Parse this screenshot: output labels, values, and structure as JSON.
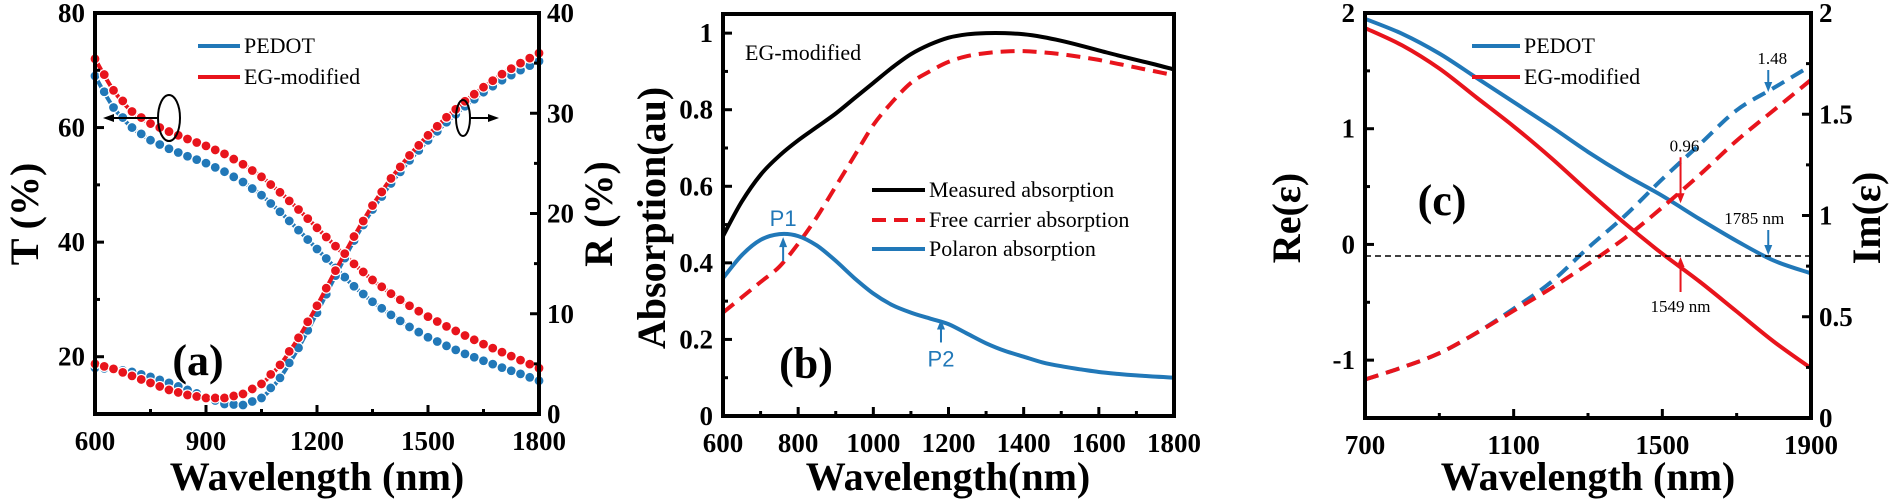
{
  "figure": {
    "colors": {
      "blue": "#2178b8",
      "red": "#e8141c",
      "black": "#000000"
    }
  },
  "chart_data": [
    {
      "id": "a",
      "type": "line",
      "panel_label": "(a)",
      "xlabel": "Wavelength (nm)",
      "ylabel": "T (%)",
      "ylabel_right": "R (%)",
      "xlim": [
        600,
        1800
      ],
      "ylim": [
        10,
        80
      ],
      "ylim_right": [
        0,
        40
      ],
      "xticks": [
        600,
        900,
        1200,
        1500,
        1800
      ],
      "yticks": [
        20,
        40,
        60,
        80
      ],
      "yticks_right": [
        0,
        10,
        20,
        30,
        40
      ],
      "legend": {
        "placement": "top-center",
        "entries": [
          "PEDOT",
          "EG-modified"
        ]
      },
      "annotations": [
        {
          "type": "ellipse-arrow",
          "x": 800,
          "direction": "left",
          "meaning": "T curves -> left axis"
        },
        {
          "type": "ellipse-arrow",
          "x": 1600,
          "direction": "right",
          "meaning": "R curves -> right axis"
        }
      ],
      "series": [
        {
          "name": "PEDOT",
          "quantity": "T",
          "axis": "left",
          "color": "blue",
          "markers": true,
          "x": [
            600,
            650,
            700,
            750,
            800,
            850,
            900,
            950,
            1000,
            1050,
            1100,
            1150,
            1200,
            1250,
            1300,
            1350,
            1400,
            1450,
            1500,
            1550,
            1600,
            1650,
            1700,
            1750,
            1800
          ],
          "y": [
            69,
            63.5,
            60,
            57.8,
            56.3,
            55,
            53.8,
            52.3,
            50.5,
            48.2,
            45.3,
            42.1,
            38.8,
            35.5,
            32.3,
            29.6,
            27.3,
            25.2,
            23.4,
            21.9,
            20.5,
            19.3,
            18.1,
            17,
            15.8
          ]
        },
        {
          "name": "EG-modified",
          "quantity": "T",
          "axis": "left",
          "color": "red",
          "markers": true,
          "x": [
            600,
            650,
            700,
            750,
            800,
            850,
            900,
            950,
            1000,
            1050,
            1100,
            1150,
            1200,
            1250,
            1300,
            1350,
            1400,
            1450,
            1500,
            1550,
            1600,
            1650,
            1700,
            1750,
            1800
          ],
          "y": [
            72,
            66.5,
            62.8,
            60.7,
            59.3,
            58,
            56.8,
            55.4,
            53.6,
            51.4,
            48.7,
            45.7,
            42.5,
            39.3,
            36.2,
            33.4,
            31,
            28.9,
            27,
            25.3,
            23.7,
            22.2,
            20.8,
            19.4,
            18
          ]
        },
        {
          "name": "PEDOT",
          "quantity": "R",
          "axis": "right",
          "color": "blue",
          "markers": true,
          "x": [
            600,
            650,
            700,
            750,
            800,
            850,
            900,
            950,
            1000,
            1050,
            1100,
            1150,
            1200,
            1250,
            1300,
            1350,
            1400,
            1450,
            1500,
            1550,
            1600,
            1650,
            1700,
            1750,
            1800
          ],
          "y": [
            4.6,
            4.5,
            4.2,
            3.7,
            3.1,
            2.4,
            1.7,
            1.0,
            0.9,
            1.6,
            3.6,
            6.6,
            10.1,
            13.8,
            17.3,
            20.4,
            23.0,
            25.3,
            27.3,
            29.1,
            30.7,
            32.1,
            33.3,
            34.3,
            35.2
          ]
        },
        {
          "name": "EG-modified",
          "quantity": "R",
          "axis": "right",
          "color": "red",
          "markers": true,
          "x": [
            600,
            650,
            700,
            750,
            800,
            850,
            900,
            950,
            1000,
            1050,
            1100,
            1150,
            1200,
            1250,
            1300,
            1350,
            1400,
            1450,
            1500,
            1550,
            1600,
            1650,
            1700,
            1750,
            1800
          ],
          "y": [
            5.0,
            4.5,
            3.8,
            3.1,
            2.4,
            1.9,
            1.6,
            1.6,
            2.0,
            3.0,
            4.9,
            7.6,
            10.8,
            14.3,
            17.7,
            20.8,
            23.5,
            25.8,
            27.8,
            29.6,
            31.2,
            32.6,
            33.9,
            35.0,
            36.0
          ]
        }
      ]
    },
    {
      "id": "b",
      "type": "line",
      "panel_label": "(b)",
      "inset_title": "EG-modified",
      "xlabel": "Wavelength(nm)",
      "ylabel": "Absorption(au)",
      "xlim": [
        600,
        1800
      ],
      "ylim": [
        0,
        1.05
      ],
      "xticks": [
        600,
        800,
        1000,
        1200,
        1400,
        1600,
        1800
      ],
      "yticks": [
        0,
        0.2,
        0.4,
        0.6,
        0.8,
        1
      ],
      "ytick_labels": [
        "0",
        "0.2",
        "0.4",
        "0.6",
        "0.8",
        "1"
      ],
      "legend": {
        "placement": "center-right",
        "entries": [
          "Measured absorption",
          "Free carrier absorption",
          "Polaron absorption"
        ]
      },
      "annotations": [
        {
          "label": "P1",
          "x": 760,
          "y": 0.475,
          "color": "blue"
        },
        {
          "label": "P2",
          "x": 1180,
          "y": 0.26,
          "color": "blue"
        }
      ],
      "series": [
        {
          "name": "Measured absorption",
          "color": "black",
          "style": "solid",
          "x": [
            600,
            650,
            700,
            750,
            800,
            850,
            900,
            950,
            1000,
            1050,
            1100,
            1150,
            1200,
            1250,
            1300,
            1350,
            1400,
            1450,
            1500,
            1550,
            1600,
            1650,
            1700,
            1750,
            1800
          ],
          "y": [
            0.47,
            0.56,
            0.63,
            0.68,
            0.72,
            0.755,
            0.79,
            0.83,
            0.87,
            0.91,
            0.945,
            0.97,
            0.988,
            0.997,
            1.0,
            1.0,
            0.997,
            0.99,
            0.98,
            0.968,
            0.955,
            0.942,
            0.93,
            0.918,
            0.905
          ]
        },
        {
          "name": "Free carrier absorption",
          "color": "red",
          "style": "dashed",
          "x": [
            600,
            650,
            700,
            750,
            800,
            850,
            900,
            950,
            1000,
            1050,
            1100,
            1150,
            1200,
            1250,
            1300,
            1350,
            1400,
            1450,
            1500,
            1550,
            1600,
            1650,
            1700,
            1750,
            1800
          ],
          "y": [
            0.27,
            0.31,
            0.35,
            0.39,
            0.45,
            0.52,
            0.6,
            0.68,
            0.76,
            0.82,
            0.87,
            0.9,
            0.925,
            0.94,
            0.948,
            0.952,
            0.953,
            0.95,
            0.945,
            0.938,
            0.93,
            0.92,
            0.91,
            0.9,
            0.89
          ]
        },
        {
          "name": "Polaron absorption",
          "color": "blue",
          "style": "solid",
          "x": [
            600,
            650,
            700,
            750,
            800,
            850,
            900,
            950,
            1000,
            1050,
            1100,
            1150,
            1200,
            1250,
            1300,
            1350,
            1400,
            1450,
            1500,
            1550,
            1600,
            1650,
            1700,
            1750,
            1800
          ],
          "y": [
            0.36,
            0.42,
            0.46,
            0.475,
            0.47,
            0.445,
            0.405,
            0.36,
            0.32,
            0.29,
            0.27,
            0.255,
            0.24,
            0.215,
            0.19,
            0.17,
            0.155,
            0.14,
            0.13,
            0.122,
            0.115,
            0.11,
            0.106,
            0.103,
            0.1
          ]
        }
      ]
    },
    {
      "id": "c",
      "type": "line",
      "panel_label": "(c)",
      "xlabel": "Wavelength (nm)",
      "ylabel": "Re(ε)",
      "ylabel_right": "Im(ε)",
      "xlim": [
        700,
        1900
      ],
      "ylim": [
        -1.5,
        2
      ],
      "ylim_right": [
        0,
        2
      ],
      "xticks": [
        700,
        1100,
        1500,
        1900
      ],
      "yticks": [
        -1,
        0,
        1,
        2
      ],
      "yticks_right": [
        0,
        0.5,
        1,
        1.5,
        2
      ],
      "legend": {
        "placement": "top-center",
        "entries": [
          "PEDOT",
          "EG-modified"
        ]
      },
      "reference_line": {
        "axis": "left",
        "y": -0.1,
        "style": "dashed",
        "color": "black"
      },
      "annotations": [
        {
          "label": "1.48",
          "x": 1785,
          "axis": "right",
          "y": 1.6,
          "color": "blue"
        },
        {
          "label": "0.96",
          "x": 1549,
          "axis": "right",
          "y": 1.1,
          "color": "red"
        },
        {
          "label": "1785 nm",
          "x": 1785,
          "axis": "left",
          "y": -0.1,
          "color": "blue"
        },
        {
          "label": "1549 nm",
          "x": 1549,
          "axis": "left",
          "y": -0.1,
          "color": "red"
        }
      ],
      "series": [
        {
          "name": "PEDOT",
          "quantity": "Re",
          "axis": "left",
          "color": "blue",
          "style": "solid",
          "x": [
            700,
            800,
            900,
            1000,
            1100,
            1200,
            1300,
            1400,
            1500,
            1600,
            1700,
            1800,
            1900
          ],
          "y": [
            1.95,
            1.82,
            1.65,
            1.44,
            1.23,
            1.02,
            0.8,
            0.6,
            0.42,
            0.22,
            0.03,
            -0.14,
            -0.25
          ]
        },
        {
          "name": "EG-modified",
          "quantity": "Re",
          "axis": "left",
          "color": "red",
          "style": "solid",
          "x": [
            700,
            800,
            900,
            1000,
            1100,
            1200,
            1300,
            1400,
            1500,
            1600,
            1700,
            1800,
            1900
          ],
          "y": [
            1.87,
            1.72,
            1.52,
            1.27,
            1.02,
            0.75,
            0.46,
            0.18,
            -0.08,
            -0.32,
            -0.58,
            -0.84,
            -1.07
          ]
        },
        {
          "name": "PEDOT",
          "quantity": "Im",
          "axis": "right",
          "color": "blue",
          "style": "dashed",
          "x": [
            700,
            800,
            900,
            1000,
            1100,
            1200,
            1300,
            1400,
            1500,
            1600,
            1700,
            1800,
            1900
          ],
          "y": [
            0.19,
            0.25,
            0.32,
            0.42,
            0.54,
            0.67,
            0.84,
            1.0,
            1.18,
            1.35,
            1.52,
            1.63,
            1.74
          ]
        },
        {
          "name": "EG-modified",
          "quantity": "Im",
          "axis": "right",
          "color": "red",
          "style": "dashed",
          "x": [
            700,
            800,
            900,
            1000,
            1100,
            1200,
            1300,
            1400,
            1500,
            1600,
            1700,
            1800,
            1900
          ],
          "y": [
            0.19,
            0.25,
            0.32,
            0.42,
            0.53,
            0.64,
            0.76,
            0.89,
            1.04,
            1.2,
            1.37,
            1.52,
            1.67
          ]
        }
      ]
    }
  ]
}
